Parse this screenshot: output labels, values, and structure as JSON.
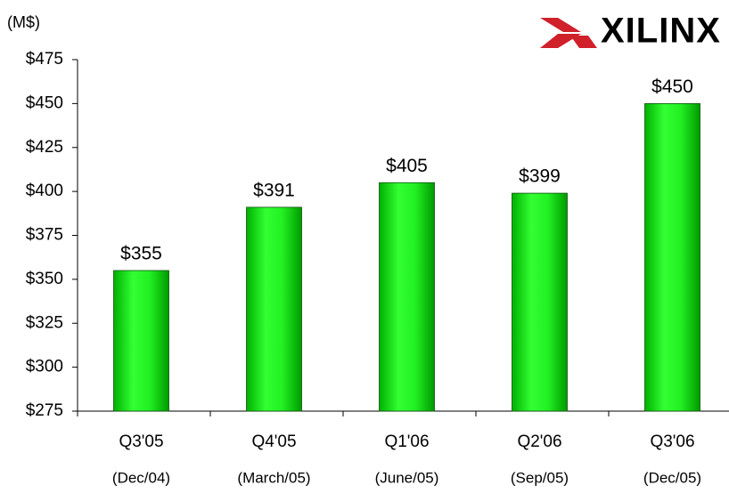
{
  "chart_data": {
    "type": "bar",
    "ylabel": "(M$)",
    "logo": "XILINX",
    "categories": [
      "Q3'05",
      "Q4'05",
      "Q1'06",
      "Q2'06",
      "Q3'06"
    ],
    "category_notes": [
      "(Dec/04)",
      "(March/05)",
      "(June/05)",
      "(Sep/05)",
      "(Dec/05)"
    ],
    "values": [
      355,
      391,
      405,
      399,
      450
    ],
    "value_labels": [
      "$355",
      "$391",
      "$405",
      "$399",
      "$450"
    ],
    "color": "#00e000",
    "ylim": [
      275,
      475
    ],
    "yticks": [
      {
        "value": 275,
        "label": "$275"
      },
      {
        "value": 300,
        "label": "$300"
      },
      {
        "value": 325,
        "label": "$325"
      },
      {
        "value": 350,
        "label": "$350"
      },
      {
        "value": 375,
        "label": "$375"
      },
      {
        "value": 400,
        "label": "$400"
      },
      {
        "value": 425,
        "label": "$425"
      },
      {
        "value": 450,
        "label": "$450"
      },
      {
        "value": 475,
        "label": "$475"
      }
    ]
  }
}
